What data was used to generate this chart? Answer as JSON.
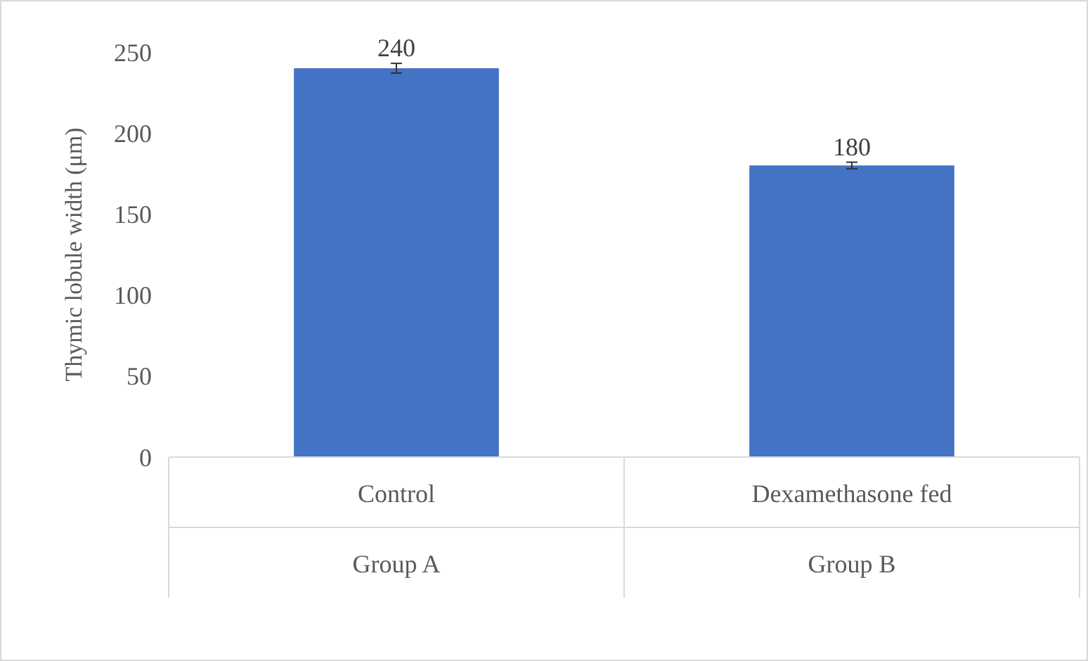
{
  "chart_data": {
    "type": "bar",
    "ylabel": "Thymic lobule width (μm)",
    "categories": [
      "Control\nGroup A",
      "Dexamethasone fed\nGroup B"
    ],
    "values": [
      240,
      180
    ],
    "errors": [
      3,
      2
    ],
    "color": "#4472c4",
    "ylim": [
      0,
      250
    ],
    "yticks": [
      0,
      50,
      100,
      150,
      200,
      250
    ],
    "grid": false,
    "data_labels": true
  }
}
